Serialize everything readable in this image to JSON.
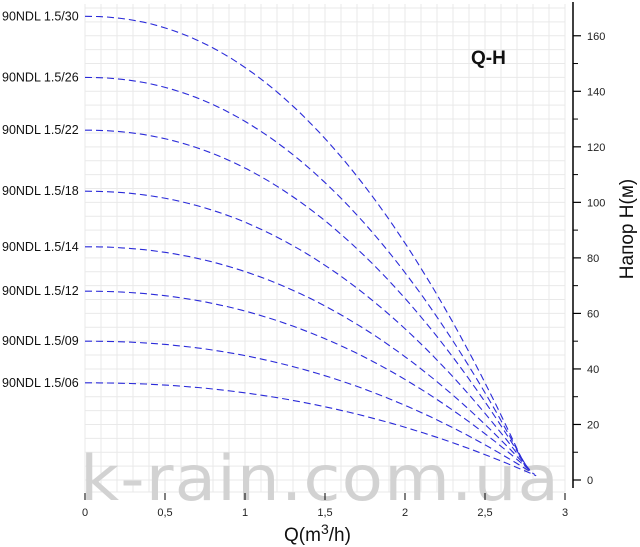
{
  "chart_data": {
    "type": "line",
    "title": "Q-H",
    "xlabel_prefix": "Q(m",
    "xlabel_sup": "3",
    "xlabel_suffix": "/h)",
    "ylabel": "Напор H(м)",
    "xlim": [
      0,
      3
    ],
    "ylim": [
      0,
      170
    ],
    "x_ticks": [
      0,
      0.5,
      1,
      1.5,
      2,
      2.5,
      3
    ],
    "x_tick_labels": [
      "0",
      "0,5",
      "1",
      "1,5",
      "2",
      "2,5",
      "3"
    ],
    "y_ticks": [
      0,
      20,
      40,
      60,
      80,
      100,
      120,
      140,
      160
    ],
    "y_tick_labels": [
      "0",
      "20",
      "40",
      "60",
      "80",
      "100",
      "120",
      "140",
      "160"
    ],
    "grid": true,
    "watermark": "k-rain.com.ua",
    "series": [
      {
        "name": "90NDL 1.5/30",
        "shutoff_head": 167,
        "x_end": 2.75,
        "end_head": 5
      },
      {
        "name": "90NDL 1.5/26",
        "shutoff_head": 145,
        "x_end": 2.76,
        "end_head": 4.5
      },
      {
        "name": "90NDL 1.5/22",
        "shutoff_head": 126,
        "x_end": 2.77,
        "end_head": 4
      },
      {
        "name": "90NDL 1.5/18",
        "shutoff_head": 104,
        "x_end": 2.78,
        "end_head": 3.5
      },
      {
        "name": "90NDL 1.5/14",
        "shutoff_head": 84,
        "x_end": 2.79,
        "end_head": 3
      },
      {
        "name": "90NDL 1.5/12",
        "shutoff_head": 68,
        "x_end": 2.8,
        "end_head": 2.5
      },
      {
        "name": "90NDL 1.5/09",
        "shutoff_head": 50,
        "x_end": 2.81,
        "end_head": 2
      },
      {
        "name": "90NDL 1.5/06",
        "shutoff_head": 35,
        "x_end": 2.82,
        "end_head": 1.5
      }
    ]
  }
}
